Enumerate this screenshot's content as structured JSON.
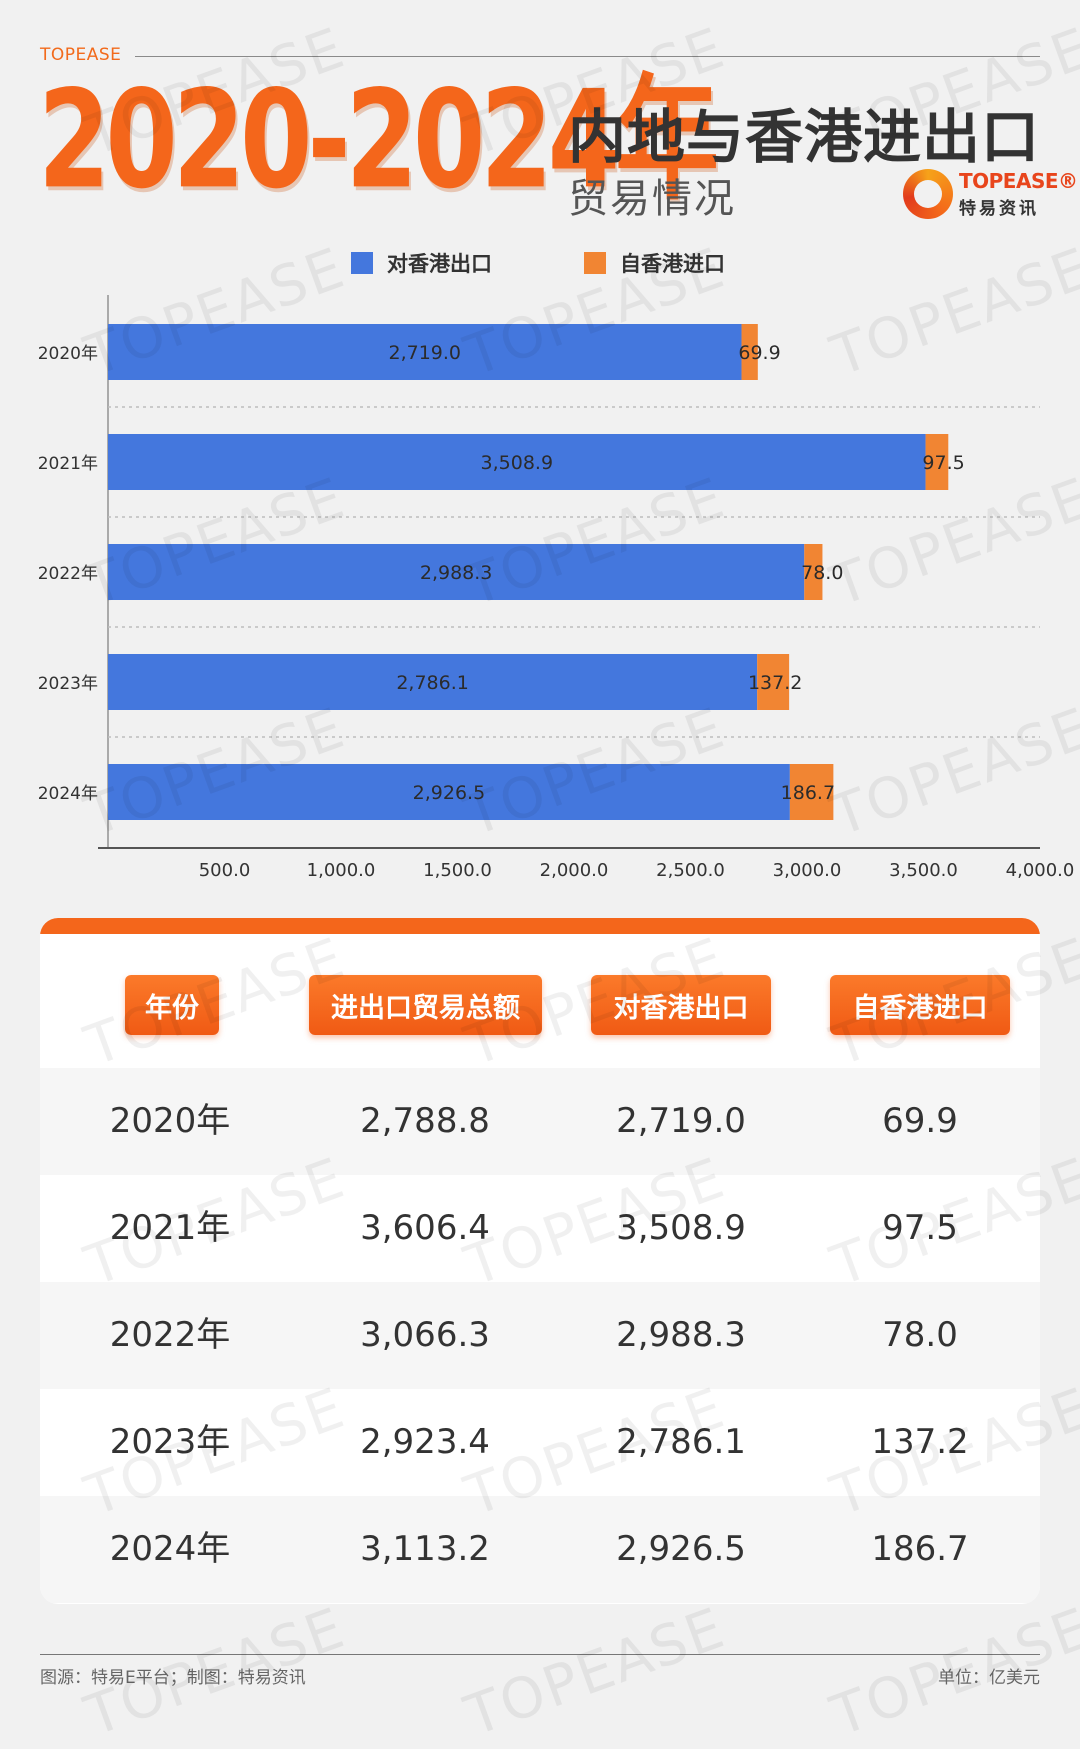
{
  "header": {
    "brand_small": "TOPEASE",
    "title_years": "2020-2024年",
    "title_line2": "内地与香港进出口",
    "title_line3": "贸易情况",
    "logo_en": "TOPEASE®",
    "logo_cn": "特易资讯"
  },
  "colors": {
    "accent": "#f4661b",
    "export": "#4477dd",
    "import": "#f18533"
  },
  "chart_data": {
    "type": "bar",
    "orientation": "horizontal",
    "stacked": true,
    "categories": [
      "2020年",
      "2021年",
      "2022年",
      "2023年",
      "2024年"
    ],
    "series": [
      {
        "name": "对香港出口",
        "values": [
          2719.0,
          3508.9,
          2988.3,
          2786.1,
          2926.5
        ],
        "labels": [
          "2,719.0",
          "3,508.9",
          "2,988.3",
          "2,786.1",
          "2,926.5"
        ],
        "color": "#4477dd"
      },
      {
        "name": "自香港进口",
        "values": [
          69.9,
          97.5,
          78.0,
          137.2,
          186.7
        ],
        "labels": [
          "69.9",
          "97.5",
          "78.0",
          "137.2",
          "186.7"
        ],
        "color": "#f18533"
      }
    ],
    "x_ticks": [
      "500.0",
      "1,000.0",
      "1,500.0",
      "2,000.0",
      "2,500.0",
      "3,000.0",
      "3,500.0",
      "4,000.0"
    ],
    "x_tick_values": [
      500,
      1000,
      1500,
      2000,
      2500,
      3000,
      3500,
      4000
    ],
    "xlim": [
      0,
      4000
    ],
    "legend_position": "top-center",
    "grid": "dotted horizontal separators"
  },
  "table": {
    "headers": [
      "年份",
      "进出口贸易总额",
      "对香港出口",
      "自香港进口"
    ],
    "rows": [
      [
        "2020年",
        "2,788.8",
        "2,719.0",
        "69.9"
      ],
      [
        "2021年",
        "3,606.4",
        "3,508.9",
        "97.5"
      ],
      [
        "2022年",
        "3,066.3",
        "2,988.3",
        "78.0"
      ],
      [
        "2023年",
        "2,923.4",
        "2,786.1",
        "137.2"
      ],
      [
        "2024年",
        "3,113.2",
        "2,926.5",
        "186.7"
      ]
    ]
  },
  "footer": {
    "source": "图源：特易E平台；制图：特易资讯",
    "unit": "单位：亿美元"
  },
  "watermark": "TOPEASE"
}
